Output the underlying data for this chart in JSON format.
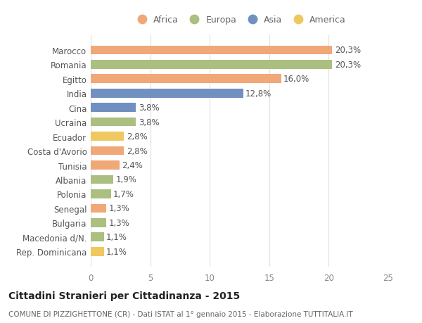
{
  "categories": [
    "Rep. Dominicana",
    "Macedonia d/N.",
    "Bulgaria",
    "Senegal",
    "Polonia",
    "Albania",
    "Tunisia",
    "Costa d'Avorio",
    "Ecuador",
    "Ucraina",
    "Cina",
    "India",
    "Egitto",
    "Romania",
    "Marocco"
  ],
  "values": [
    1.1,
    1.1,
    1.3,
    1.3,
    1.7,
    1.9,
    2.4,
    2.8,
    2.8,
    3.8,
    3.8,
    12.8,
    16.0,
    20.3,
    20.3
  ],
  "continents": [
    "America",
    "Europa",
    "Europa",
    "Africa",
    "Europa",
    "Europa",
    "Africa",
    "Africa",
    "America",
    "Europa",
    "Asia",
    "Asia",
    "Africa",
    "Europa",
    "Africa"
  ],
  "continent_colors": {
    "Africa": "#F0A878",
    "Europa": "#AABF80",
    "Asia": "#7090C0",
    "America": "#F0C860"
  },
  "labels": [
    "1,1%",
    "1,1%",
    "1,3%",
    "1,3%",
    "1,7%",
    "1,9%",
    "2,4%",
    "2,8%",
    "2,8%",
    "3,8%",
    "3,8%",
    "12,8%",
    "16,0%",
    "20,3%",
    "20,3%"
  ],
  "xlim": [
    0,
    25
  ],
  "xticks": [
    0,
    5,
    10,
    15,
    20,
    25
  ],
  "legend_order": [
    "Africa",
    "Europa",
    "Asia",
    "America"
  ],
  "title": "Cittadini Stranieri per Cittadinanza - 2015",
  "subtitle": "COMUNE DI PIZZIGHETTONE (CR) - Dati ISTAT al 1° gennaio 2015 - Elaborazione TUTTITALIA.IT",
  "background_color": "#ffffff",
  "grid_color": "#e0e0e0",
  "bar_height": 0.62,
  "label_fontsize": 8.5,
  "tick_fontsize": 8.5,
  "title_fontsize": 10,
  "subtitle_fontsize": 7.5,
  "legend_fontsize": 9
}
